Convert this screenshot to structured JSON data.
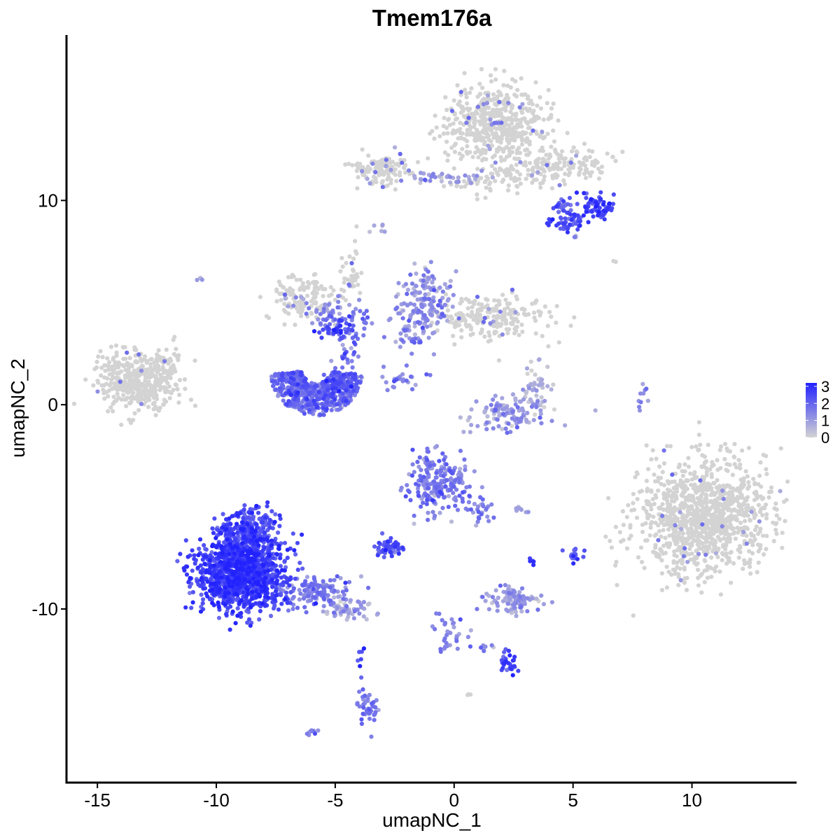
{
  "chart_data": {
    "type": "scatter",
    "title": "Tmem176a",
    "xlabel": "umapNC_1",
    "ylabel": "umapNC_2",
    "xlim": [
      -16.3,
      14.4
    ],
    "ylim": [
      -18.5,
      18.1
    ],
    "xticks": [
      -15,
      -10,
      -5,
      0,
      5,
      10
    ],
    "yticks": [
      -10,
      0,
      10
    ],
    "color_scale": {
      "low_color": "#d3d3d3",
      "high_color": "#2222ff",
      "min": 0,
      "max": 3.2,
      "legend_ticks": [
        3,
        2,
        1,
        0
      ],
      "legend_position": "right"
    },
    "clusters": [
      {
        "x": 6.0,
        "y": 9.7,
        "n": 70,
        "sx": 0.35,
        "sy": 0.35,
        "expr": 2.6
      },
      {
        "x": 4.9,
        "y": 9.0,
        "n": 50,
        "sx": 0.35,
        "sy": 0.3,
        "expr": 2.3
      },
      {
        "x": 4.6,
        "y": 9.7,
        "n": 18,
        "sx": 0.2,
        "sy": 0.25,
        "expr": 2.0
      },
      {
        "x": -4.8,
        "y": 3.7,
        "n": 60,
        "sx": 0.45,
        "sy": 0.3,
        "expr": 2.2
      },
      {
        "x": -2.7,
        "y": -7.0,
        "n": 60,
        "sx": 0.3,
        "sy": 0.25,
        "expr": 2.3
      },
      {
        "x": 2.3,
        "y": -12.6,
        "n": 30,
        "sx": 0.25,
        "sy": 0.25,
        "expr": 2.5
      },
      {
        "x": 5.1,
        "y": -7.4,
        "n": 20,
        "sx": 0.2,
        "sy": 0.25,
        "expr": 2.2
      },
      {
        "x": 3.3,
        "y": -7.7,
        "n": 5,
        "sx": 0.08,
        "sy": 0.08,
        "expr": 2.6
      },
      {
        "x": -0.2,
        "y": -11.3,
        "n": 35,
        "sx": 0.3,
        "sy": 0.6,
        "expr": 1.6
      },
      {
        "x": -3.6,
        "y": -14.8,
        "n": 45,
        "sx": 0.25,
        "sy": 0.5,
        "expr": 1.5
      },
      {
        "x": -3.9,
        "y": -12.2,
        "n": 6,
        "sx": 0.08,
        "sy": 0.3,
        "expr": 2.4
      },
      {
        "x": 1.7,
        "y": 13.8,
        "n": 520,
        "sx": 1.1,
        "sy": 0.9,
        "expr": 0.12
      },
      {
        "x": 3.2,
        "y": 11.6,
        "n": 140,
        "sx": 1.1,
        "sy": 0.5,
        "expr": 0.25
      },
      {
        "x": 5.4,
        "y": 11.8,
        "n": 60,
        "sx": 0.7,
        "sy": 0.4,
        "expr": 0.15
      },
      {
        "x": -3.0,
        "y": 11.5,
        "n": 130,
        "sx": 0.6,
        "sy": 0.4,
        "expr": 0.3
      },
      {
        "x": -0.5,
        "y": 11.1,
        "n": 35,
        "sx": 0.9,
        "sy": 0.15,
        "expr": 1.0
      },
      {
        "x": 1.2,
        "y": 11.0,
        "n": 30,
        "sx": 0.6,
        "sy": 0.4,
        "expr": 0.3
      },
      {
        "x": -3.2,
        "y": 8.6,
        "n": 6,
        "sx": 0.15,
        "sy": 0.12,
        "expr": 0.8
      },
      {
        "x": -6.3,
        "y": 5.3,
        "n": 130,
        "sx": 0.8,
        "sy": 0.6,
        "expr": 0.2
      },
      {
        "x": -5.3,
        "y": 4.4,
        "n": 40,
        "sx": 0.4,
        "sy": 0.35,
        "expr": 1.2
      },
      {
        "x": -4.3,
        "y": 6.4,
        "n": 35,
        "sx": 0.2,
        "sy": 0.9,
        "expr": 0.3
      },
      {
        "x": -3.9,
        "y": 4.2,
        "n": 15,
        "sx": 0.35,
        "sy": 0.3,
        "expr": 1.6
      },
      {
        "x": -4.5,
        "y": 2.0,
        "n": 30,
        "sx": 0.3,
        "sy": 0.6,
        "expr": 1.8
      },
      {
        "x": -1.2,
        "y": 5.2,
        "n": 140,
        "sx": 0.5,
        "sy": 0.8,
        "expr": 1.1
      },
      {
        "x": 1.6,
        "y": 4.3,
        "n": 220,
        "sx": 1.2,
        "sy": 0.55,
        "expr": 0.25
      },
      {
        "x": -1.9,
        "y": 3.5,
        "n": 50,
        "sx": 0.5,
        "sy": 0.7,
        "expr": 1.3
      },
      {
        "x": -2.1,
        "y": 1.2,
        "n": 25,
        "sx": 0.5,
        "sy": 0.25,
        "expr": 1.6
      },
      {
        "x": -13.3,
        "y": 1.2,
        "n": 420,
        "sx": 0.8,
        "sy": 0.7,
        "expr": 0.04
      },
      {
        "x": -12.1,
        "y": 1.7,
        "n": 40,
        "sx": 0.35,
        "sy": 0.6,
        "expr": 0.05
      },
      {
        "x": 2.4,
        "y": -0.4,
        "n": 110,
        "sx": 1.0,
        "sy": 0.5,
        "expr": 1.0
      },
      {
        "x": 3.4,
        "y": 0.7,
        "n": 45,
        "sx": 0.3,
        "sy": 0.6,
        "expr": 0.5
      },
      {
        "x": 7.9,
        "y": 0.3,
        "n": 10,
        "sx": 0.1,
        "sy": 0.4,
        "expr": 1.4
      },
      {
        "x": -0.6,
        "y": -3.9,
        "n": 220,
        "sx": 0.7,
        "sy": 0.7,
        "expr": 1.5
      },
      {
        "x": 1.0,
        "y": -5.2,
        "n": 30,
        "sx": 0.4,
        "sy": 0.45,
        "expr": 1.4
      },
      {
        "x": 10.5,
        "y": -5.5,
        "n": 1100,
        "sx": 1.4,
        "sy": 1.4,
        "expr": 0.06
      },
      {
        "x": 2.4,
        "y": -9.6,
        "n": 100,
        "sx": 0.55,
        "sy": 0.3,
        "expr": 1.0
      },
      {
        "x": -9.0,
        "y": -8.2,
        "n": 1300,
        "sx": 0.9,
        "sy": 0.9,
        "expr": 2.55
      },
      {
        "x": -8.6,
        "y": -6.1,
        "n": 220,
        "sx": 0.6,
        "sy": 0.5,
        "expr": 2.3
      },
      {
        "x": -5.7,
        "y": -9.2,
        "n": 130,
        "sx": 0.75,
        "sy": 0.4,
        "expr": 1.5
      },
      {
        "x": -4.5,
        "y": -10.0,
        "n": 60,
        "sx": 0.5,
        "sy": 0.25,
        "expr": 0.8
      },
      {
        "x": -6.0,
        "y": -16.0,
        "n": 10,
        "sx": 0.12,
        "sy": 0.08,
        "expr": 1.5
      },
      {
        "x": -10.7,
        "y": 6.1,
        "n": 4,
        "sx": 0.05,
        "sy": 0.05,
        "expr": 0.5
      },
      {
        "x": 6.7,
        "y": 7.0,
        "n": 2,
        "sx": 0.05,
        "sy": 0.05,
        "expr": 0.1
      },
      {
        "x": 0.6,
        "y": -14.2,
        "n": 4,
        "sx": 0.05,
        "sy": 0.05,
        "expr": 0.2
      },
      {
        "x": 2.8,
        "y": -5.1,
        "n": 8,
        "sx": 0.15,
        "sy": 0.08,
        "expr": 0.8
      },
      {
        "x": 5.1,
        "y": 8.2,
        "n": 4,
        "sx": 0.05,
        "sy": 0.08,
        "expr": 0.5
      },
      {
        "x": 1.5,
        "y": -11.9,
        "n": 8,
        "sx": 0.3,
        "sy": 0.1,
        "expr": 1.2
      }
    ],
    "arcs": [
      {
        "cx": -5.8,
        "cy": 1.7,
        "rx": 1.95,
        "ry": 2.25,
        "a0": 0.1,
        "a1": 3.05,
        "width": 0.7,
        "n": 700,
        "expr": 1.75
      }
    ]
  }
}
